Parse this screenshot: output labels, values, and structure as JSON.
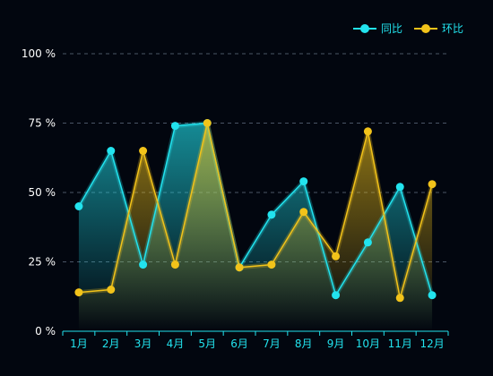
{
  "chart_data": {
    "type": "line",
    "categories": [
      "1月",
      "2月",
      "3月",
      "4月",
      "5月",
      "6月",
      "7月",
      "8月",
      "9月",
      "10月",
      "11月",
      "12月"
    ],
    "ylim": [
      0,
      100
    ],
    "yticks": [
      0,
      25,
      50,
      75,
      100
    ],
    "ytick_labels": [
      "0 %",
      "25 %",
      "50 %",
      "75 %",
      "100 %"
    ],
    "grid": true,
    "legend_position": "top-right",
    "series": [
      {
        "name": "同比",
        "color": "#22e3ee",
        "values": [
          45,
          65,
          24,
          74,
          75,
          23,
          42,
          54,
          13,
          32,
          52,
          13
        ]
      },
      {
        "name": "环比",
        "color": "#f2c31a",
        "values": [
          14,
          15,
          65,
          24,
          75,
          23,
          24,
          43,
          27,
          72,
          12,
          53
        ]
      }
    ]
  },
  "colors": {
    "background": "#02060f",
    "axis_line": "#22e3ee",
    "x_tick_text": "#22e3ee",
    "y_tick_text": "#ffffff",
    "grid": "#4a5566",
    "legend_text": "#22e3ee"
  }
}
